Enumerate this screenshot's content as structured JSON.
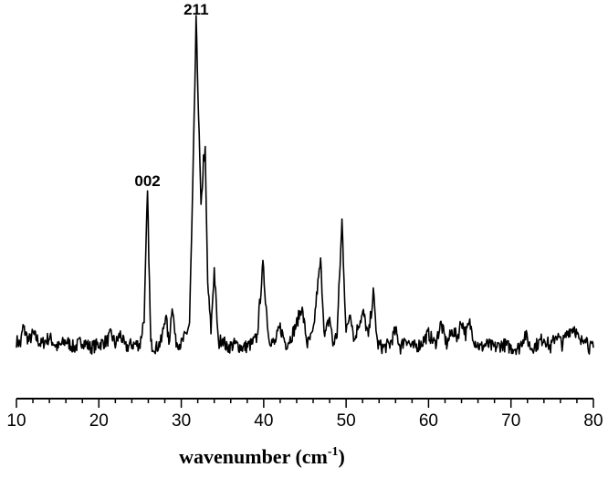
{
  "chart_data": {
    "type": "line",
    "title": "",
    "xlabel": "wavenumber (cm",
    "xlabel_superscript": "-1",
    "xlabel_suffix": ")",
    "ylabel": "",
    "xlim": [
      10,
      80
    ],
    "ylim": [
      0,
      100
    ],
    "x_ticks": [
      "10",
      "20",
      "30",
      "40",
      "50",
      "60",
      "70",
      "80"
    ],
    "grid": false,
    "legend": "none",
    "line_color": "#000000",
    "series": [
      {
        "x": [
          10.0,
          10.5,
          10.8,
          11.5,
          12.0,
          13.0,
          14.0,
          15.0,
          16.0,
          17.0,
          18.0,
          19.0,
          20.0,
          21.0,
          21.5,
          22.0,
          22.6,
          23.2,
          24.0,
          25.0,
          25.5,
          25.9,
          26.3,
          27.0,
          27.6,
          28.1,
          28.5,
          28.9,
          29.3,
          30.0,
          30.6,
          31.0,
          31.4,
          31.8,
          32.1,
          32.4,
          32.7,
          32.9,
          33.2,
          33.6,
          34.0,
          34.5,
          35.0,
          35.5,
          36.5,
          37.5,
          38.5,
          39.2,
          39.9,
          40.6,
          41.3,
          42.0,
          42.7,
          43.3,
          44.0,
          44.6,
          45.3,
          46.0,
          46.5,
          46.9,
          47.4,
          48.0,
          48.4,
          48.9,
          49.5,
          50.0,
          50.5,
          51.0,
          51.5,
          52.1,
          52.7,
          53.3,
          53.8,
          54.5,
          55.3,
          56.0,
          56.6,
          57.2,
          58.0,
          59.0,
          60.0,
          60.8,
          61.5,
          62.2,
          62.9,
          63.5,
          64.0,
          64.5,
          65.0,
          65.6,
          66.3,
          67.0,
          68.0,
          69.0,
          70.0,
          71.0,
          71.7,
          72.4,
          73.2,
          74.0,
          74.8,
          75.5,
          76.2,
          77.0,
          77.7,
          78.4,
          79.0,
          79.5,
          80.0
        ],
        "y": [
          7,
          6,
          11,
          7,
          9,
          6,
          8,
          5,
          7,
          5,
          7,
          5,
          6,
          7,
          9,
          6,
          9,
          5,
          6,
          6,
          14,
          50,
          6,
          5,
          7,
          15,
          6,
          18,
          7,
          6,
          9,
          12,
          52,
          100,
          73,
          45,
          60,
          62,
          24,
          10,
          28,
          6,
          8,
          5,
          6,
          5,
          6,
          8,
          29,
          8,
          6,
          11,
          6,
          8,
          12,
          17,
          6,
          9,
          22,
          30,
          8,
          14,
          6,
          9,
          42,
          9,
          16,
          7,
          12,
          15,
          8,
          21,
          6,
          5,
          6,
          10,
          5,
          8,
          5,
          6,
          9,
          6,
          12,
          6,
          10,
          8,
          13,
          9,
          12,
          7,
          5,
          6,
          5,
          6,
          5,
          5,
          9,
          5,
          6,
          8,
          5,
          9,
          6,
          10,
          11,
          6,
          9,
          5,
          5
        ]
      }
    ],
    "annotations": [
      {
        "text": "002",
        "x": 25.9,
        "y": 50
      },
      {
        "text": "211",
        "x": 31.8,
        "y": 100
      }
    ]
  }
}
